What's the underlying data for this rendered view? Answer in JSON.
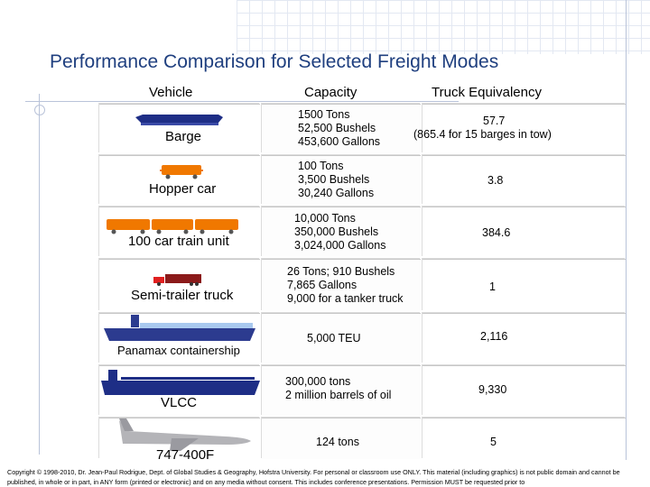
{
  "title": "Performance Comparison for Selected Freight Modes",
  "headers": {
    "vehicle": "Vehicle",
    "capacity": "Capacity",
    "truck_equivalency": "Truck Equivalency"
  },
  "rows": [
    {
      "vehicle": "Barge",
      "icon": "barge-icon",
      "capacity": [
        "1500 Tons",
        "52,500 Bushels",
        "453,600 Gallons"
      ],
      "equivalency": [
        "57.7",
        "(865.4 for 15 barges in tow)"
      ]
    },
    {
      "vehicle": "Hopper car",
      "icon": "hopper-car-icon",
      "capacity": [
        "100 Tons",
        "3,500 Bushels",
        "30,240 Gallons"
      ],
      "equivalency": [
        "3.8"
      ]
    },
    {
      "vehicle": "100 car train unit",
      "icon": "train-icon",
      "capacity": [
        "10,000 Tons",
        "350,000 Bushels",
        "3,024,000 Gallons"
      ],
      "equivalency": [
        "384.6"
      ]
    },
    {
      "vehicle": "Semi-trailer truck",
      "icon": "truck-icon",
      "capacity": [
        "26 Tons; 910 Bushels",
        "7,865 Gallons",
        "9,000 for a tanker truck"
      ],
      "equivalency": [
        "1"
      ]
    },
    {
      "vehicle": "Panamax containership",
      "icon": "containership-icon",
      "capacity": [
        "5,000 TEU"
      ],
      "equivalency": [
        "2,116"
      ]
    },
    {
      "vehicle": "VLCC",
      "icon": "tanker-ship-icon",
      "capacity": [
        "300,000 tons",
        "2 million barrels of oil"
      ],
      "equivalency": [
        "9,330"
      ]
    },
    {
      "vehicle": "747-400F",
      "icon": "airplane-icon",
      "capacity": [
        "124 tons"
      ],
      "equivalency": [
        "5"
      ]
    }
  ],
  "footer": "Copyright © 1998-2010, Dr. Jean-Paul Rodrigue, Dept. of Global Studies & Geography, Hofstra University. For personal or classroom use ONLY. This material (including graphics) is not public domain and cannot be published, in whole or in part, in ANY form (printed or electronic) and on any media without consent. This includes conference presentations. Permission MUST be requested prior to",
  "colors": {
    "title": "#1f3f7f",
    "barge": "#1e2e86",
    "hopper": "#f07800",
    "truck_cab": "#e02020",
    "truck_trailer": "#8b1a1a",
    "ship_hull": "#2c3b8f",
    "ship_deck": "#a9c9ef",
    "airplane": "#b4b4b8"
  }
}
